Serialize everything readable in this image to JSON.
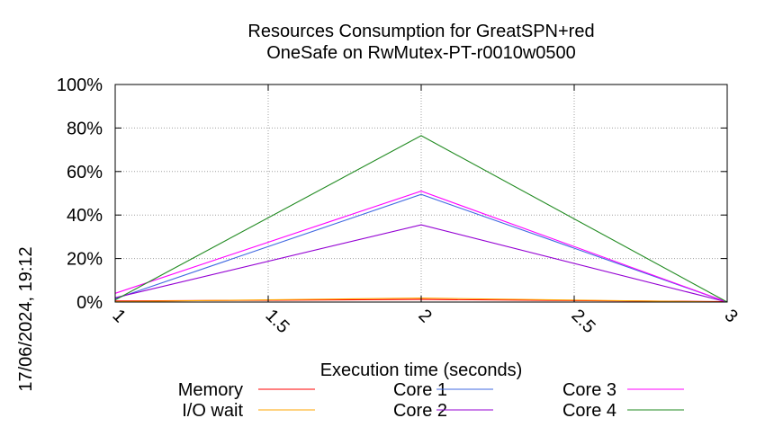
{
  "chart_data": {
    "type": "line",
    "title_line1": "Resources Consumption for GreatSPN+red",
    "title_line2": "OneSafe on RwMutex-PT-r0010w0500",
    "xlabel": "Execution time (seconds)",
    "ylabel": "",
    "side_label": "17/06/2024, 19:12",
    "xlim": [
      1,
      3
    ],
    "ylim": [
      0,
      100
    ],
    "x_ticks": [
      {
        "value": 1,
        "label": "1"
      },
      {
        "value": 1.5,
        "label": "1.5"
      },
      {
        "value": 2,
        "label": "2"
      },
      {
        "value": 2.5,
        "label": "2.5"
      },
      {
        "value": 3,
        "label": "3"
      }
    ],
    "y_ticks": [
      {
        "value": 0,
        "label": "0%"
      },
      {
        "value": 20,
        "label": "20%"
      },
      {
        "value": 40,
        "label": "40%"
      },
      {
        "value": 60,
        "label": "60%"
      },
      {
        "value": 80,
        "label": "80%"
      },
      {
        "value": 100,
        "label": "100%"
      }
    ],
    "grid": true,
    "legend_position": "bottom",
    "series": [
      {
        "name": "Memory",
        "color": "#ff0000",
        "x": [
          1,
          2,
          3
        ],
        "y": [
          0.5,
          1.2,
          0.2
        ]
      },
      {
        "name": "I/O wait",
        "color": "#ffa500",
        "x": [
          1,
          2,
          3
        ],
        "y": [
          0.2,
          1.8,
          0.0
        ]
      },
      {
        "name": "Core 1",
        "color": "#4169e1",
        "x": [
          1,
          2,
          3
        ],
        "y": [
          1.5,
          49.5,
          0.0
        ]
      },
      {
        "name": "Core 2",
        "color": "#9400d3",
        "x": [
          1,
          2,
          3
        ],
        "y": [
          2.0,
          35.5,
          0.0
        ]
      },
      {
        "name": "Core 3",
        "color": "#ff00ff",
        "x": [
          1,
          2,
          3
        ],
        "y": [
          4.0,
          51.0,
          0.0
        ]
      },
      {
        "name": "Core 4",
        "color": "#228b22",
        "x": [
          1,
          2,
          3
        ],
        "y": [
          1.0,
          76.5,
          0.0
        ]
      }
    ]
  }
}
